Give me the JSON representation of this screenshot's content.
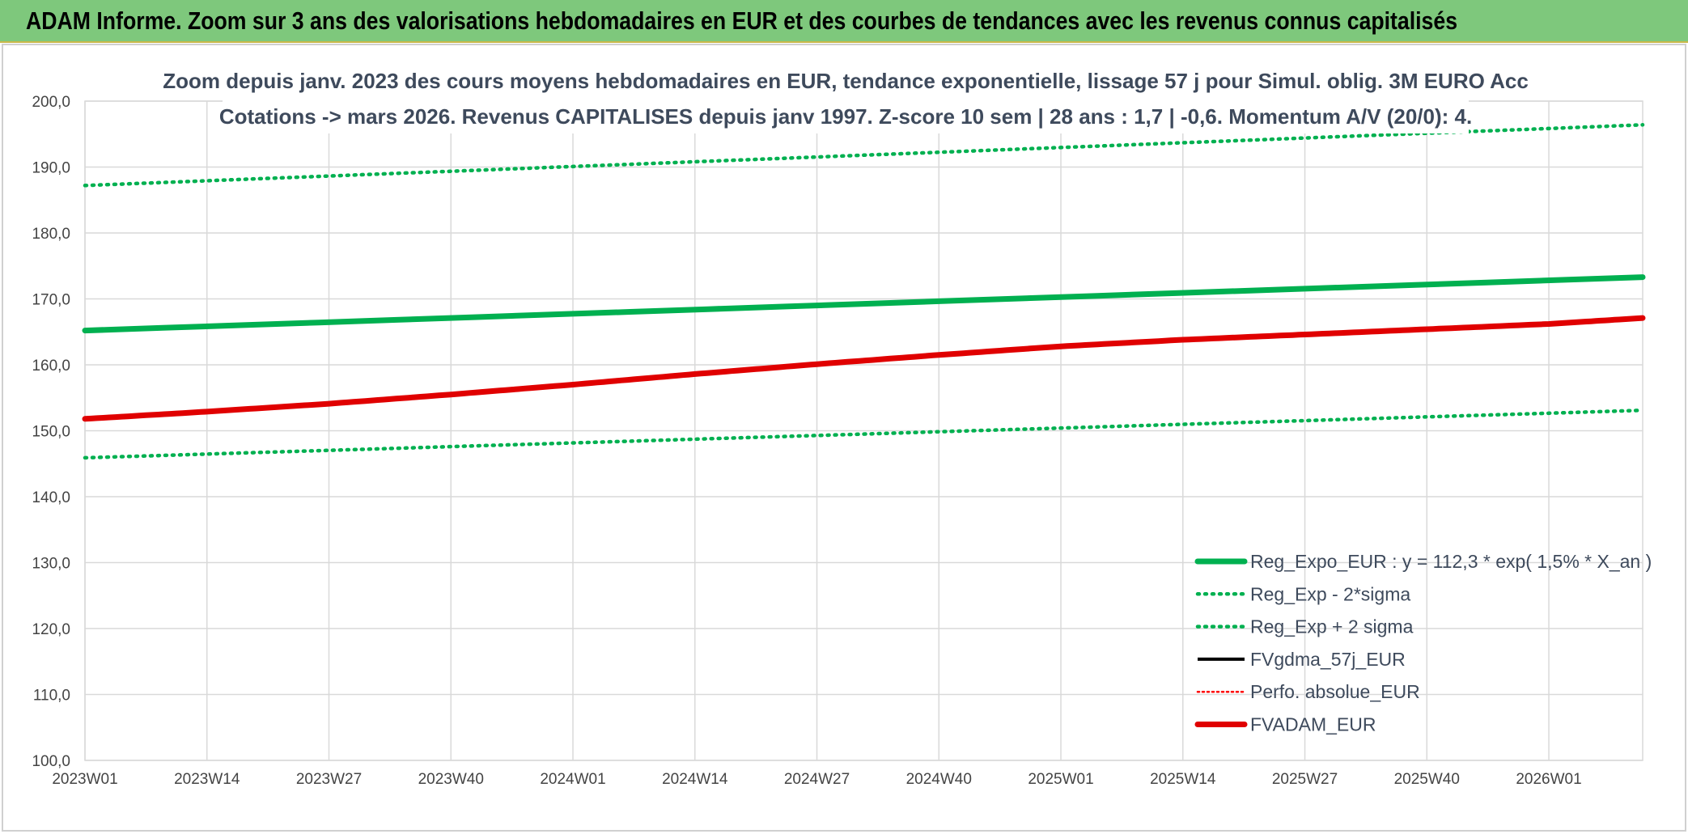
{
  "header": {
    "title": "ADAM Informe. Zoom sur 3 ans des valorisations hebdomadaires en EUR et des courbes de tendances avec les revenus connus capitalisés"
  },
  "chart_data": {
    "type": "line",
    "title_lines": [
      "Zoom depuis janv. 2023 des cours moyens hebdomadaires en EUR, tendance exponentielle, lissage 57 j pour Simul. oblig. 3M EURO Acc",
      "Cotations -> mars 2026. Revenus CAPITALISES depuis janv 1997. Z-score 10 sem | 28 ans : 1,7 | -0,6. Momentum A/V (20/0): 4."
    ],
    "x_tick_labels": [
      "2023W01",
      "2023W14",
      "2023W27",
      "2023W40",
      "2024W01",
      "2024W14",
      "2024W27",
      "2024W40",
      "2025W01",
      "2025W14",
      "2025W27",
      "2025W40",
      "2026W01"
    ],
    "x_range_weeks": [
      0,
      166
    ],
    "y_tick_labels": [
      "100,0",
      "110,0",
      "120,0",
      "130,0",
      "140,0",
      "150,0",
      "160,0",
      "170,0",
      "180,0",
      "190,0",
      "200,0"
    ],
    "ylim": [
      100,
      200
    ],
    "grid": true,
    "legend_position": "bottom-right",
    "series": [
      {
        "name": "Reg_Expo_EUR : y = 112,3 * exp( 1,5% *  X_an )",
        "color": "#00b050",
        "style": "solid-thick",
        "x": [
          0,
          166
        ],
        "y": [
          165.2,
          173.3
        ]
      },
      {
        "name": "Reg_Exp - 2*sigma",
        "color": "#00b050",
        "style": "dotted",
        "x": [
          0,
          166
        ],
        "y": [
          145.9,
          153.1
        ]
      },
      {
        "name": "Reg_Exp + 2 sigma",
        "color": "#00b050",
        "style": "dotted",
        "x": [
          0,
          166
        ],
        "y": [
          187.2,
          196.4
        ]
      },
      {
        "name": "FVgdma_57j_EUR",
        "color": "#000000",
        "style": "solid",
        "x": [],
        "y": []
      },
      {
        "name": "Perfo. absolue_EUR",
        "color": "#ff0000",
        "style": "dotted-thin",
        "x": [],
        "y": []
      },
      {
        "name": "FVADAM_EUR",
        "color": "#e00000",
        "style": "solid-thick",
        "x": [
          0,
          13,
          26,
          39,
          52,
          65,
          78,
          91,
          104,
          117,
          130,
          143,
          156,
          166
        ],
        "y": [
          151.8,
          152.9,
          154.1,
          155.5,
          157.0,
          158.6,
          160.1,
          161.5,
          162.8,
          163.8,
          164.6,
          165.4,
          166.2,
          167.1
        ]
      }
    ]
  }
}
